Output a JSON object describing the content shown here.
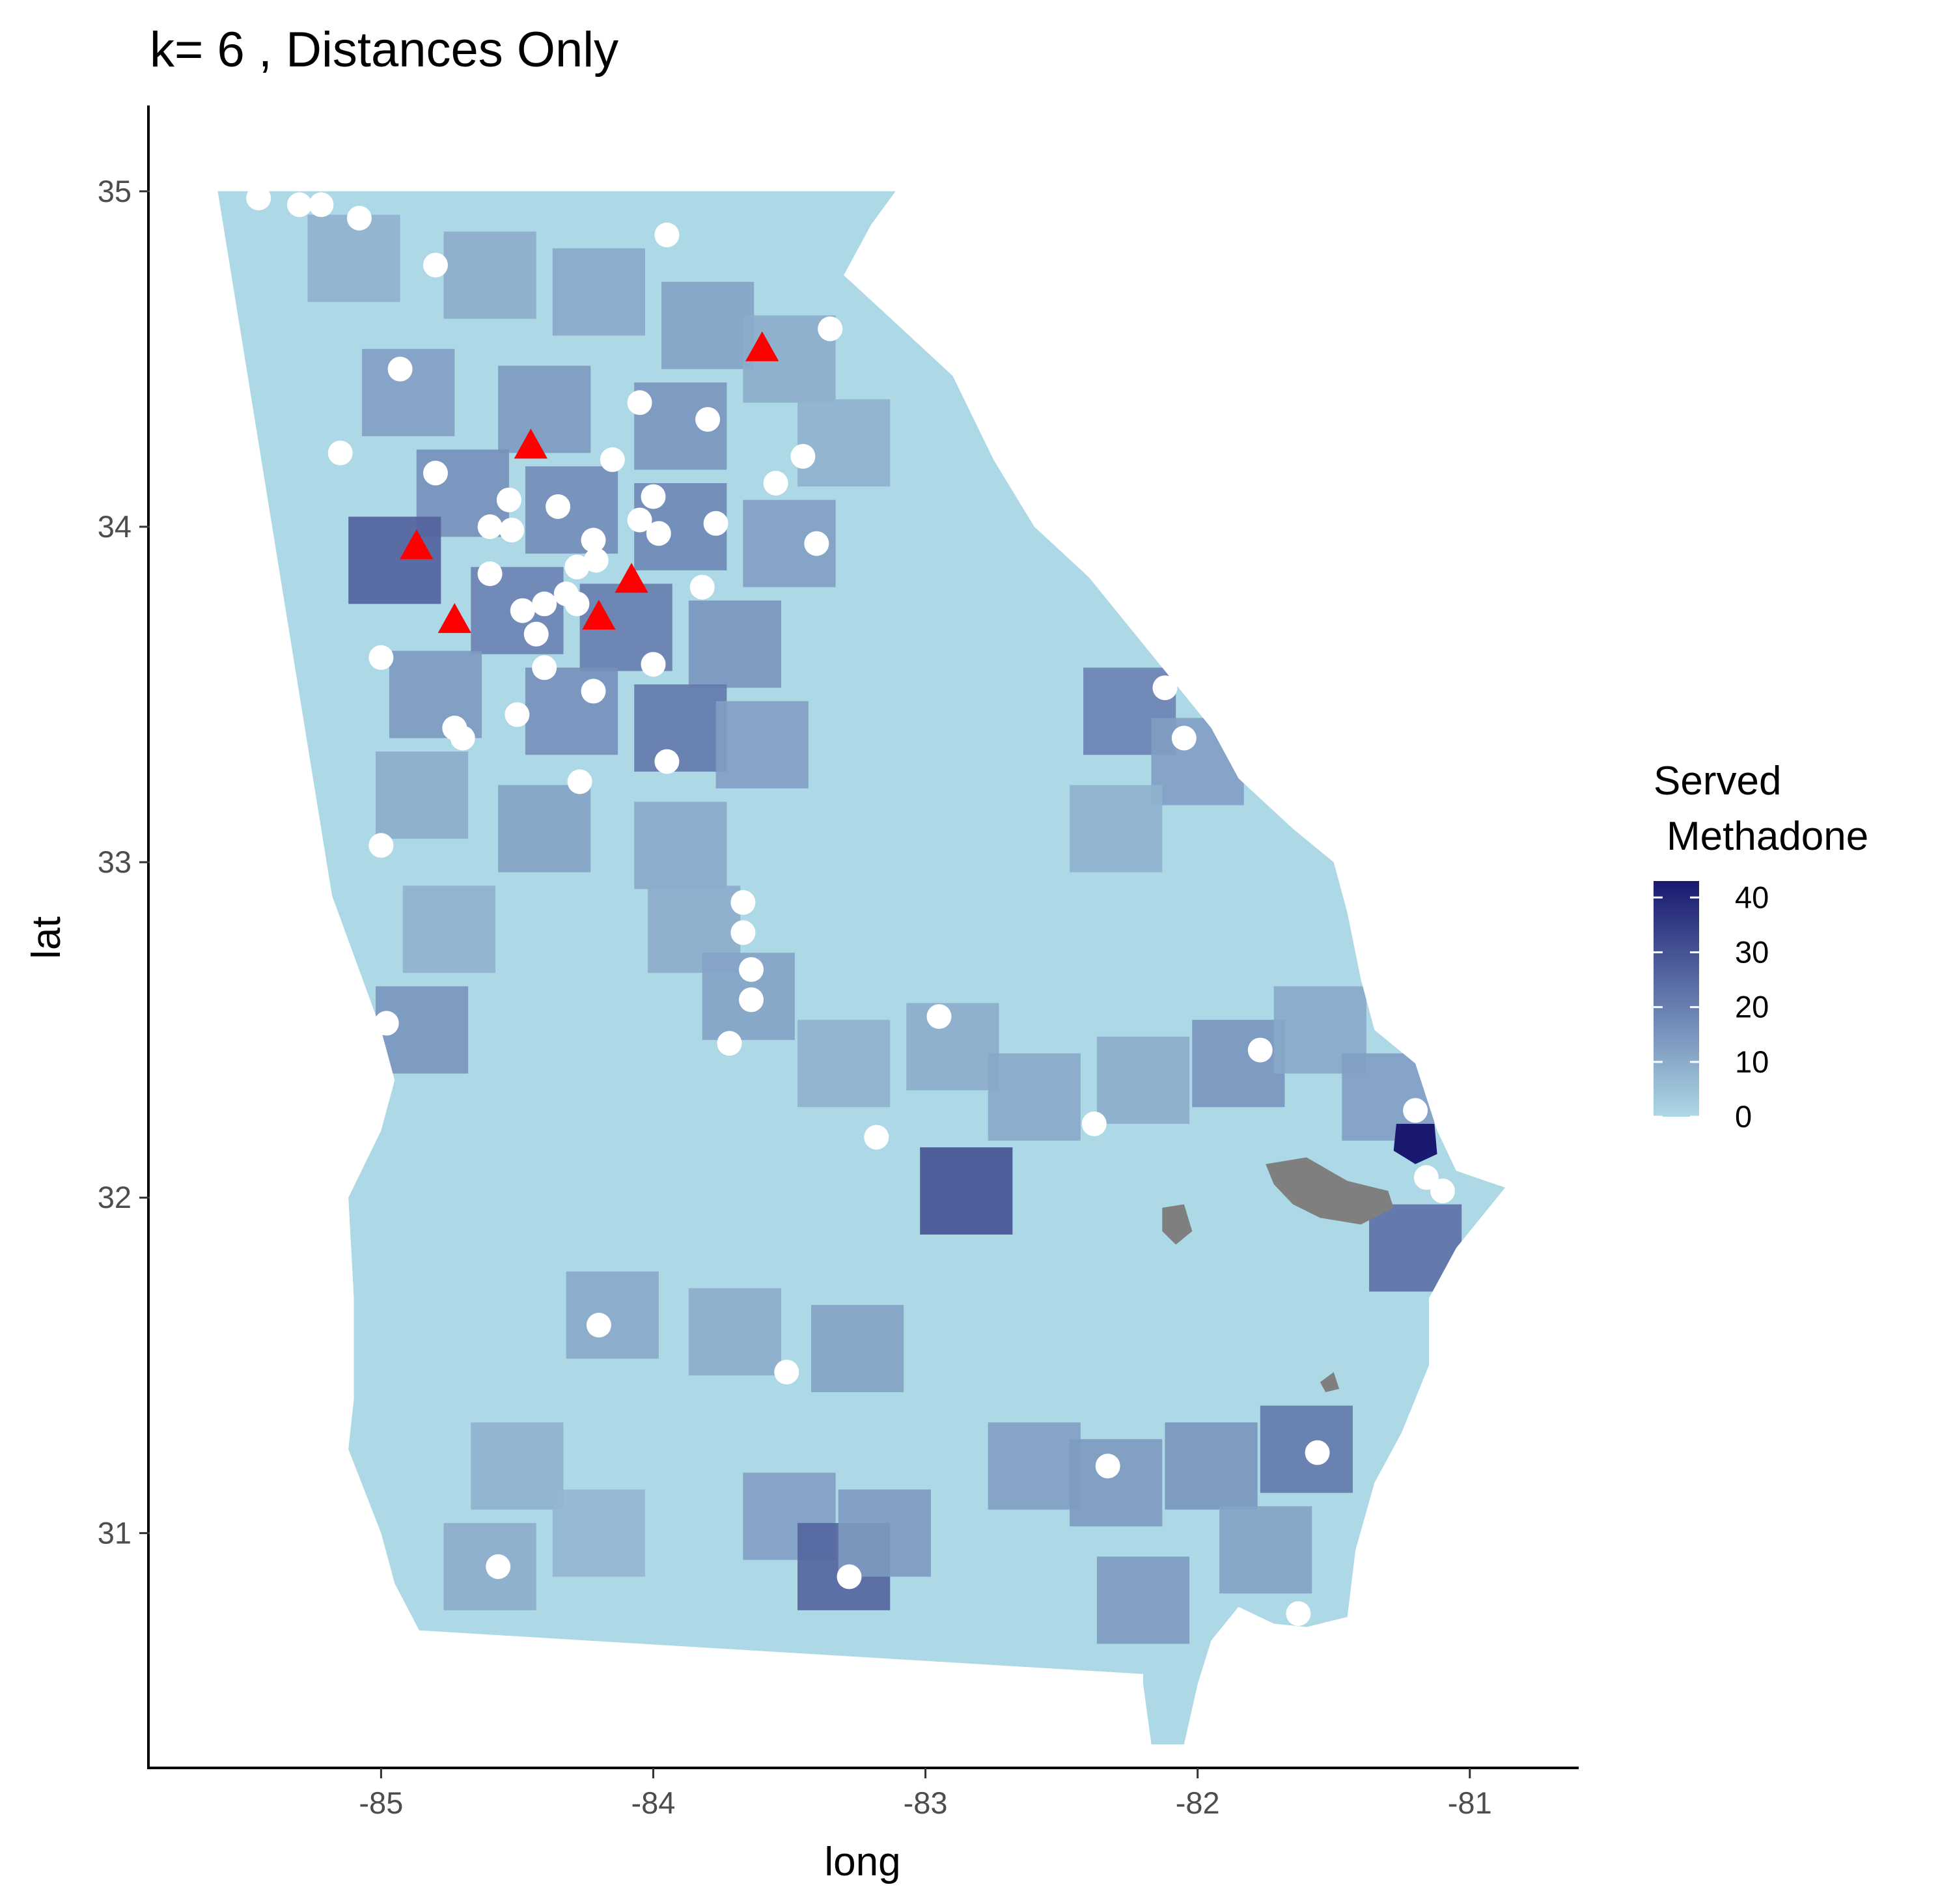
{
  "chart_data": {
    "type": "map",
    "title": "k= 6 , Distances Only",
    "xlabel": "long",
    "ylabel": "lat",
    "xlim": [
      -85.85,
      -80.6
    ],
    "ylim": [
      30.3,
      35.25
    ],
    "x_ticks": [
      -85,
      -84,
      -83,
      -82,
      -81
    ],
    "x_tick_labels": [
      "-85",
      "-84",
      "-83",
      "-82",
      "-81"
    ],
    "y_ticks": [
      31,
      32,
      33,
      34,
      35
    ],
    "y_tick_labels": [
      "31",
      "32",
      "33",
      "34",
      "35"
    ],
    "legend": {
      "title_line1": "Served",
      "title_line2": "Methadone",
      "placement": "right",
      "range": [
        0,
        40
      ],
      "ticks": [
        0,
        10,
        20,
        30,
        40
      ],
      "tick_labels": [
        "0",
        "10",
        "20",
        "30",
        "40"
      ],
      "color_low": "#add8e6",
      "color_high": "#191970"
    },
    "state_outline": [
      [
        -85.6,
        35.0
      ],
      [
        -83.11,
        35.0
      ],
      [
        -83.2,
        34.9
      ],
      [
        -83.3,
        34.75
      ],
      [
        -83.1,
        34.6
      ],
      [
        -82.9,
        34.45
      ],
      [
        -82.75,
        34.2
      ],
      [
        -82.6,
        34.0
      ],
      [
        -82.4,
        33.85
      ],
      [
        -82.25,
        33.7
      ],
      [
        -82.15,
        33.6
      ],
      [
        -82.05,
        33.5
      ],
      [
        -81.95,
        33.4
      ],
      [
        -81.85,
        33.25
      ],
      [
        -81.65,
        33.1
      ],
      [
        -81.5,
        33.0
      ],
      [
        -81.45,
        32.85
      ],
      [
        -81.4,
        32.65
      ],
      [
        -81.35,
        32.5
      ],
      [
        -81.2,
        32.4
      ],
      [
        -81.12,
        32.2
      ],
      [
        -81.05,
        32.08
      ],
      [
        -80.87,
        32.03
      ],
      [
        -81.05,
        31.85
      ],
      [
        -81.15,
        31.7
      ],
      [
        -81.15,
        31.5
      ],
      [
        -81.25,
        31.3
      ],
      [
        -81.35,
        31.15
      ],
      [
        -81.42,
        30.95
      ],
      [
        -81.45,
        30.75
      ],
      [
        -81.6,
        30.72
      ],
      [
        -81.72,
        30.73
      ],
      [
        -81.85,
        30.78
      ],
      [
        -81.95,
        30.68
      ],
      [
        -82.0,
        30.55
      ],
      [
        -82.05,
        30.37
      ],
      [
        -82.17,
        30.37
      ],
      [
        -82.2,
        30.55
      ],
      [
        -82.2,
        30.58
      ],
      [
        -84.86,
        30.71
      ],
      [
        -84.95,
        30.85
      ],
      [
        -85.0,
        31.0
      ],
      [
        -85.12,
        31.25
      ],
      [
        -85.1,
        31.4
      ],
      [
        -85.1,
        31.7
      ],
      [
        -85.12,
        32.0
      ],
      [
        -85.0,
        32.2
      ],
      [
        -84.95,
        32.35
      ],
      [
        -85.0,
        32.5
      ],
      [
        -85.18,
        32.9
      ],
      [
        -85.6,
        35.0
      ]
    ],
    "gray_regions": [
      [
        [
          -81.75,
          32.1
        ],
        [
          -81.6,
          32.12
        ],
        [
          -81.45,
          32.05
        ],
        [
          -81.3,
          32.02
        ],
        [
          -81.28,
          31.97
        ],
        [
          -81.4,
          31.92
        ],
        [
          -81.55,
          31.94
        ],
        [
          -81.65,
          31.98
        ],
        [
          -81.72,
          32.04
        ]
      ],
      [
        [
          -82.13,
          31.97
        ],
        [
          -82.05,
          31.98
        ],
        [
          -82.02,
          31.9
        ],
        [
          -82.08,
          31.86
        ],
        [
          -82.13,
          31.9
        ]
      ],
      [
        [
          -81.55,
          31.45
        ],
        [
          -81.5,
          31.48
        ],
        [
          -81.48,
          31.43
        ],
        [
          -81.53,
          31.42
        ]
      ]
    ],
    "dark_patch": {
      "value": 43,
      "polygon": [
        [
          -81.27,
          32.22
        ],
        [
          -81.13,
          32.22
        ],
        [
          -81.12,
          32.13
        ],
        [
          -81.2,
          32.1
        ],
        [
          -81.28,
          32.14
        ]
      ]
    },
    "choropleth_cells": [
      {
        "x": -85.1,
        "y": 34.8,
        "v": 8
      },
      {
        "x": -84.6,
        "y": 34.75,
        "v": 9
      },
      {
        "x": -84.2,
        "y": 34.7,
        "v": 10
      },
      {
        "x": -83.8,
        "y": 34.6,
        "v": 11
      },
      {
        "x": -83.5,
        "y": 34.5,
        "v": 9
      },
      {
        "x": -84.9,
        "y": 34.4,
        "v": 12
      },
      {
        "x": -84.4,
        "y": 34.35,
        "v": 13
      },
      {
        "x": -83.9,
        "y": 34.3,
        "v": 14
      },
      {
        "x": -83.3,
        "y": 34.25,
        "v": 8
      },
      {
        "x": -84.7,
        "y": 34.1,
        "v": 15
      },
      {
        "x": -84.3,
        "y": 34.05,
        "v": 16
      },
      {
        "x": -83.9,
        "y": 34.0,
        "v": 17
      },
      {
        "x": -83.5,
        "y": 33.95,
        "v": 12
      },
      {
        "x": -84.95,
        "y": 33.9,
        "v": 25
      },
      {
        "x": -84.5,
        "y": 33.75,
        "v": 18
      },
      {
        "x": -84.1,
        "y": 33.7,
        "v": 19
      },
      {
        "x": -83.7,
        "y": 33.65,
        "v": 14
      },
      {
        "x": -84.8,
        "y": 33.5,
        "v": 13
      },
      {
        "x": -84.3,
        "y": 33.45,
        "v": 15
      },
      {
        "x": -83.9,
        "y": 33.4,
        "v": 20
      },
      {
        "x": -83.6,
        "y": 33.35,
        "v": 12
      },
      {
        "x": -84.85,
        "y": 33.2,
        "v": 9
      },
      {
        "x": -84.4,
        "y": 33.1,
        "v": 11
      },
      {
        "x": -83.9,
        "y": 33.05,
        "v": 10
      },
      {
        "x": -84.75,
        "y": 32.8,
        "v": 8
      },
      {
        "x": -84.85,
        "y": 32.5,
        "v": 14
      },
      {
        "x": -83.85,
        "y": 32.8,
        "v": 9
      },
      {
        "x": -83.65,
        "y": 32.6,
        "v": 11
      },
      {
        "x": -83.3,
        "y": 32.4,
        "v": 8
      },
      {
        "x": -82.9,
        "y": 32.45,
        "v": 9
      },
      {
        "x": -82.6,
        "y": 32.3,
        "v": 10
      },
      {
        "x": -82.85,
        "y": 32.02,
        "v": 28
      },
      {
        "x": -82.2,
        "y": 32.35,
        "v": 9
      },
      {
        "x": -81.85,
        "y": 32.4,
        "v": 14
      },
      {
        "x": -81.55,
        "y": 32.5,
        "v": 10
      },
      {
        "x": -81.3,
        "y": 32.3,
        "v": 12
      },
      {
        "x": -81.2,
        "y": 31.85,
        "v": 22
      },
      {
        "x": -82.25,
        "y": 33.45,
        "v": 18
      },
      {
        "x": -82.0,
        "y": 33.3,
        "v": 12
      },
      {
        "x": -82.3,
        "y": 33.1,
        "v": 8
      },
      {
        "x": -84.15,
        "y": 31.65,
        "v": 10
      },
      {
        "x": -83.7,
        "y": 31.6,
        "v": 9
      },
      {
        "x": -83.25,
        "y": 31.55,
        "v": 11
      },
      {
        "x": -84.5,
        "y": 31.2,
        "v": 8
      },
      {
        "x": -84.2,
        "y": 31.0,
        "v": 7
      },
      {
        "x": -83.5,
        "y": 31.05,
        "v": 12
      },
      {
        "x": -83.3,
        "y": 30.9,
        "v": 24
      },
      {
        "x": -83.15,
        "y": 31.0,
        "v": 13
      },
      {
        "x": -82.6,
        "y": 31.2,
        "v": 12
      },
      {
        "x": -82.3,
        "y": 31.15,
        "v": 13
      },
      {
        "x": -81.95,
        "y": 31.2,
        "v": 14
      },
      {
        "x": -81.6,
        "y": 31.25,
        "v": 20
      },
      {
        "x": -81.75,
        "y": 30.95,
        "v": 11
      },
      {
        "x": -82.2,
        "y": 30.8,
        "v": 13
      },
      {
        "x": -84.6,
        "y": 30.9,
        "v": 9
      }
    ],
    "series": [
      {
        "marker": "circle",
        "color": "#ffffff",
        "points": [
          [
            -85.45,
            34.98
          ],
          [
            -85.3,
            34.96
          ],
          [
            -85.22,
            34.96
          ],
          [
            -85.08,
            34.92
          ],
          [
            -84.8,
            34.78
          ],
          [
            -83.95,
            34.87
          ],
          [
            -83.35,
            34.59
          ],
          [
            -84.93,
            34.47
          ],
          [
            -84.05,
            34.37
          ],
          [
            -83.8,
            34.32
          ],
          [
            -85.15,
            34.22
          ],
          [
            -84.8,
            34.16
          ],
          [
            -84.15,
            34.2
          ],
          [
            -83.45,
            34.21
          ],
          [
            -83.55,
            34.13
          ],
          [
            -84.53,
            34.08
          ],
          [
            -84.35,
            34.06
          ],
          [
            -84.0,
            34.09
          ],
          [
            -84.6,
            34.0
          ],
          [
            -84.52,
            33.99
          ],
          [
            -84.05,
            34.02
          ],
          [
            -83.98,
            33.98
          ],
          [
            -83.77,
            34.01
          ],
          [
            -84.22,
            33.96
          ],
          [
            -83.4,
            33.95
          ],
          [
            -84.6,
            33.86
          ],
          [
            -84.28,
            33.88
          ],
          [
            -84.21,
            33.9
          ],
          [
            -83.82,
            33.82
          ],
          [
            -84.48,
            33.75
          ],
          [
            -84.4,
            33.77
          ],
          [
            -84.32,
            33.8
          ],
          [
            -84.28,
            33.77
          ],
          [
            -84.43,
            33.68
          ],
          [
            -85.0,
            33.61
          ],
          [
            -84.4,
            33.58
          ],
          [
            -84.0,
            33.59
          ],
          [
            -84.22,
            33.51
          ],
          [
            -84.5,
            33.44
          ],
          [
            -84.73,
            33.4
          ],
          [
            -84.7,
            33.37
          ],
          [
            -83.95,
            33.3
          ],
          [
            -84.27,
            33.24
          ],
          [
            -85.0,
            33.05
          ],
          [
            -83.67,
            32.88
          ],
          [
            -83.67,
            32.79
          ],
          [
            -83.64,
            32.68
          ],
          [
            -83.64,
            32.59
          ],
          [
            -83.72,
            32.46
          ],
          [
            -82.95,
            32.54
          ],
          [
            -84.98,
            32.52
          ],
          [
            -81.77,
            32.44
          ],
          [
            -81.2,
            32.26
          ],
          [
            -82.38,
            32.22
          ],
          [
            -83.18,
            32.18
          ],
          [
            -82.05,
            33.37
          ],
          [
            -82.12,
            33.52
          ],
          [
            -81.16,
            32.06
          ],
          [
            -81.1,
            32.02
          ],
          [
            -84.2,
            31.62
          ],
          [
            -83.51,
            31.48
          ],
          [
            -81.56,
            31.24
          ],
          [
            -82.33,
            31.2
          ],
          [
            -84.57,
            30.9
          ],
          [
            -83.28,
            30.87
          ],
          [
            -81.63,
            30.76
          ]
        ]
      },
      {
        "marker": "triangle",
        "color": "#ff0000",
        "points": [
          [
            -83.6,
            34.53
          ],
          [
            -84.45,
            34.24
          ],
          [
            -84.87,
            33.94
          ],
          [
            -84.08,
            33.84
          ],
          [
            -84.73,
            33.72
          ],
          [
            -84.2,
            33.73
          ]
        ]
      }
    ]
  }
}
